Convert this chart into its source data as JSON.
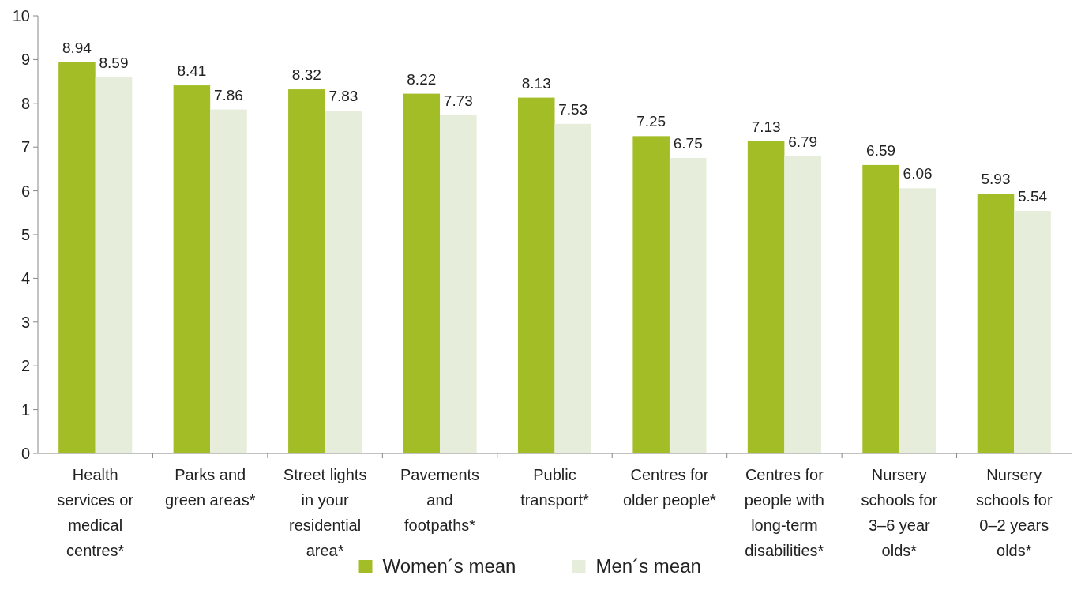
{
  "chart_data": {
    "type": "bar",
    "categories": [
      "Health services or medical centres*",
      "Parks and green areas*",
      "Street lights in your residential area*",
      "Pavements and footpaths*",
      "Public transport*",
      "Centres for older people*",
      "Centres for people with long-term disabilities*",
      "Nursery schools for 3–6 year olds*",
      "Nursery schools for 0–2 years olds*"
    ],
    "series": [
      {
        "name": "Women´s mean",
        "color": "#a3bd26",
        "values": [
          8.94,
          8.41,
          8.32,
          8.22,
          8.13,
          7.25,
          7.13,
          6.59,
          5.93
        ]
      },
      {
        "name": "Men´s mean",
        "color": "#e6eddb",
        "values": [
          8.59,
          7.86,
          7.83,
          7.73,
          7.53,
          6.75,
          6.79,
          6.06,
          5.54
        ]
      }
    ],
    "ylim": [
      0,
      10
    ],
    "yticks": [
      0,
      1,
      2,
      3,
      4,
      5,
      6,
      7,
      8,
      9,
      10
    ],
    "data_labels": true,
    "grid": false,
    "legend": "bottom"
  }
}
